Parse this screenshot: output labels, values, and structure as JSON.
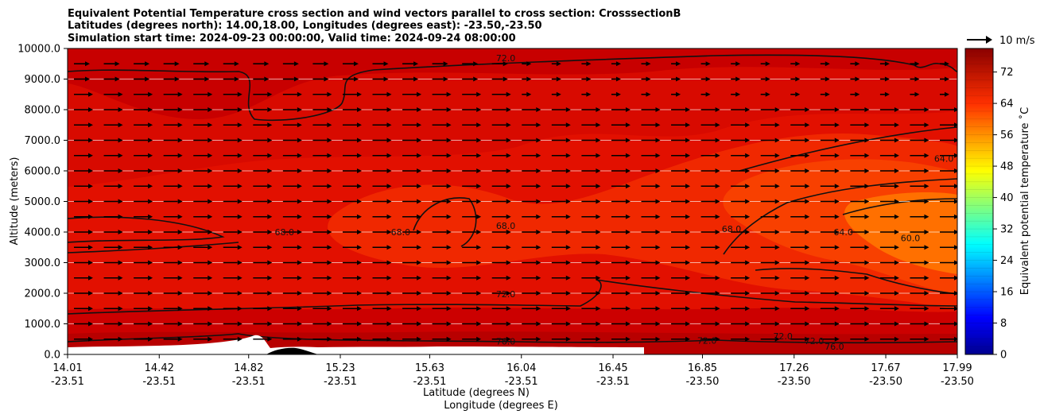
{
  "title_lines": [
    "Equivalent Potential Temperature cross section and wind vectors parallel to cross section: CrosssectionB",
    "Latitudes (degrees north): 14.00,18.00, Longitudes (degrees east): -23.50,-23.50",
    "Simulation start time: 2024-09-23 00:00:00, Valid time: 2024-09-24 08:00:00"
  ],
  "quiver_key_label": "10 m/s",
  "colorbar_label": "Equivalent potential temperature ˚C",
  "chart_data": {
    "type": "heatmap",
    "subtype": "filled contour cross-section with contour lines and wind vectors",
    "x_ticks": [
      {
        "lat": "14.01",
        "lon": "-23.51"
      },
      {
        "lat": "14.42",
        "lon": "-23.51"
      },
      {
        "lat": "14.82",
        "lon": "-23.51"
      },
      {
        "lat": "15.23",
        "lon": "-23.51"
      },
      {
        "lat": "15.63",
        "lon": "-23.51"
      },
      {
        "lat": "16.04",
        "lon": "-23.51"
      },
      {
        "lat": "16.45",
        "lon": "-23.51"
      },
      {
        "lat": "16.85",
        "lon": "-23.50"
      },
      {
        "lat": "17.26",
        "lon": "-23.50"
      },
      {
        "lat": "17.67",
        "lon": "-23.50"
      },
      {
        "lat": "17.99",
        "lon": "-23.50"
      }
    ],
    "xlabel_1": "Latitude (degrees N)",
    "xlabel_2": "Longitude (degrees E)",
    "ylabel": "Altitude (meters)",
    "y_ticks": [
      "0.0",
      "1000.0",
      "2000.0",
      "3000.0",
      "4000.0",
      "5000.0",
      "6000.0",
      "7000.0",
      "8000.0",
      "9000.0",
      "10000.0"
    ],
    "ylim": [
      0,
      10000
    ],
    "grid": "horizontal lines",
    "colorbar": {
      "ticks": [
        "0",
        "8",
        "16",
        "24",
        "32",
        "40",
        "48",
        "56",
        "64",
        "72"
      ],
      "range": [
        0,
        78
      ],
      "levels_step": 2,
      "colormap": "jet"
    },
    "contour_labels": [
      {
        "text": "72.0",
        "lat": 15.97,
        "alt": 9580
      },
      {
        "text": "68.0",
        "lat": 14.98,
        "alt": 3900
      },
      {
        "text": "68.0",
        "lat": 15.5,
        "alt": 3900
      },
      {
        "text": "68.0",
        "lat": 15.97,
        "alt": 4100
      },
      {
        "text": "68.0",
        "lat": 16.98,
        "alt": 4000
      },
      {
        "text": "64.0",
        "lat": 17.48,
        "alt": 3900
      },
      {
        "text": "60.0",
        "lat": 17.78,
        "alt": 3700
      },
      {
        "text": "64.0",
        "lat": 17.93,
        "alt": 6300
      },
      {
        "text": "72.0",
        "lat": 15.97,
        "alt": 1870
      },
      {
        "text": "76.0",
        "lat": 15.97,
        "alt": 330
      },
      {
        "text": "72.0",
        "lat": 16.87,
        "alt": 350
      },
      {
        "text": "72.0",
        "lat": 17.21,
        "alt": 500
      },
      {
        "text": "72.0",
        "lat": 17.35,
        "alt": 340
      },
      {
        "text": "76.0",
        "lat": 17.44,
        "alt": 150
      }
    ],
    "wind": "vectors pointing east (parallel to section), mostly ~10 m/s",
    "terrain": "black orography near 15.1-15.3 degrees N reaching ~200 m"
  }
}
